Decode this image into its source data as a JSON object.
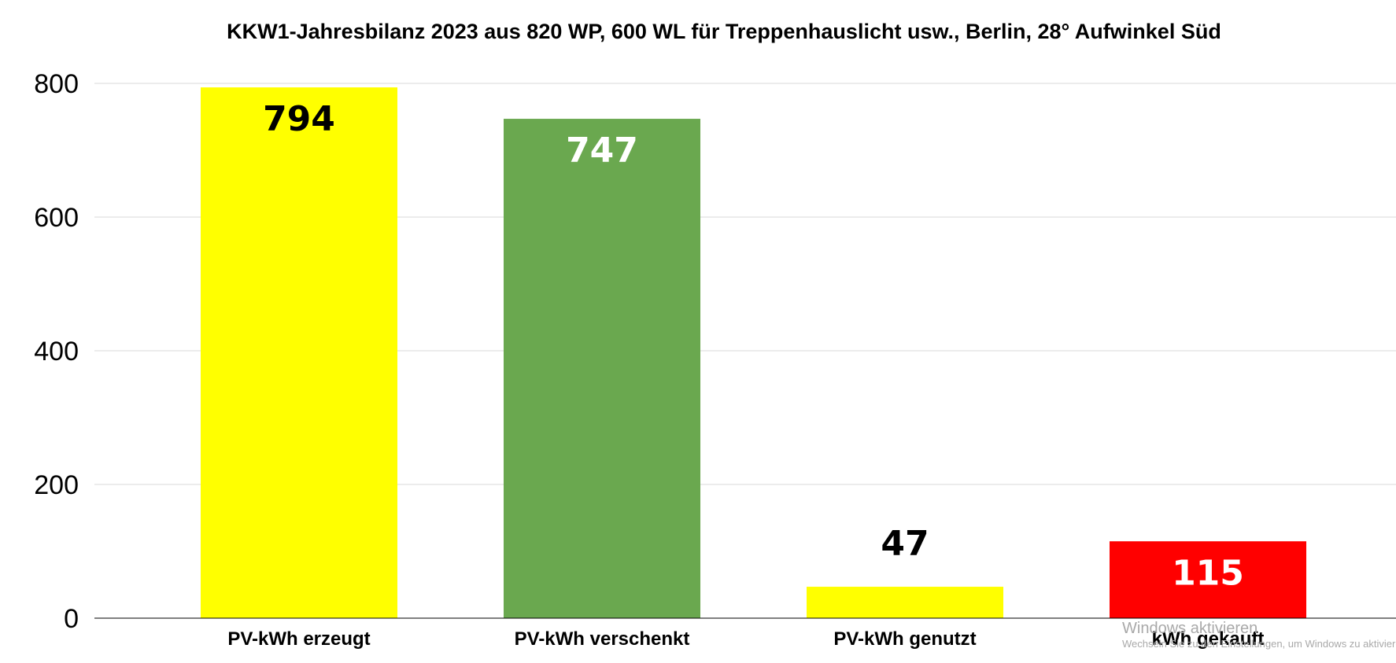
{
  "chart_data": {
    "type": "bar",
    "title": "KKW1-Jahresbilanz 2023 aus 820 WP, 600 WL für Treppenhauslicht usw., Berlin, 28° Aufwinkel Süd",
    "categories": [
      "PV-kWh erzeugt",
      "PV-kWh verschenkt",
      "PV-kWh genutzt",
      "kWh gekauft"
    ],
    "values": [
      794,
      747,
      47,
      115
    ],
    "value_labels": [
      "794",
      "747",
      "47",
      "115"
    ],
    "bar_colors": [
      "#ffff00",
      "#6aa84f",
      "#ffff00",
      "#ff0000"
    ],
    "label_colors": [
      "#000000",
      "#ffffff",
      "#000000",
      "#ffffff"
    ],
    "label_placement": [
      "inside",
      "inside",
      "above",
      "inside"
    ],
    "ylim": [
      0,
      800
    ],
    "yticks": [
      0,
      200,
      400,
      600,
      800
    ],
    "ytick_labels": [
      "0",
      "200",
      "400",
      "600",
      "800"
    ],
    "xlabel": "",
    "ylabel": "",
    "grid": true,
    "legend": "none"
  },
  "watermark": {
    "title": "Windows aktivieren",
    "subtitle": "Wechseln Sie zu den Einstellungen, um Windows zu aktivieren."
  }
}
